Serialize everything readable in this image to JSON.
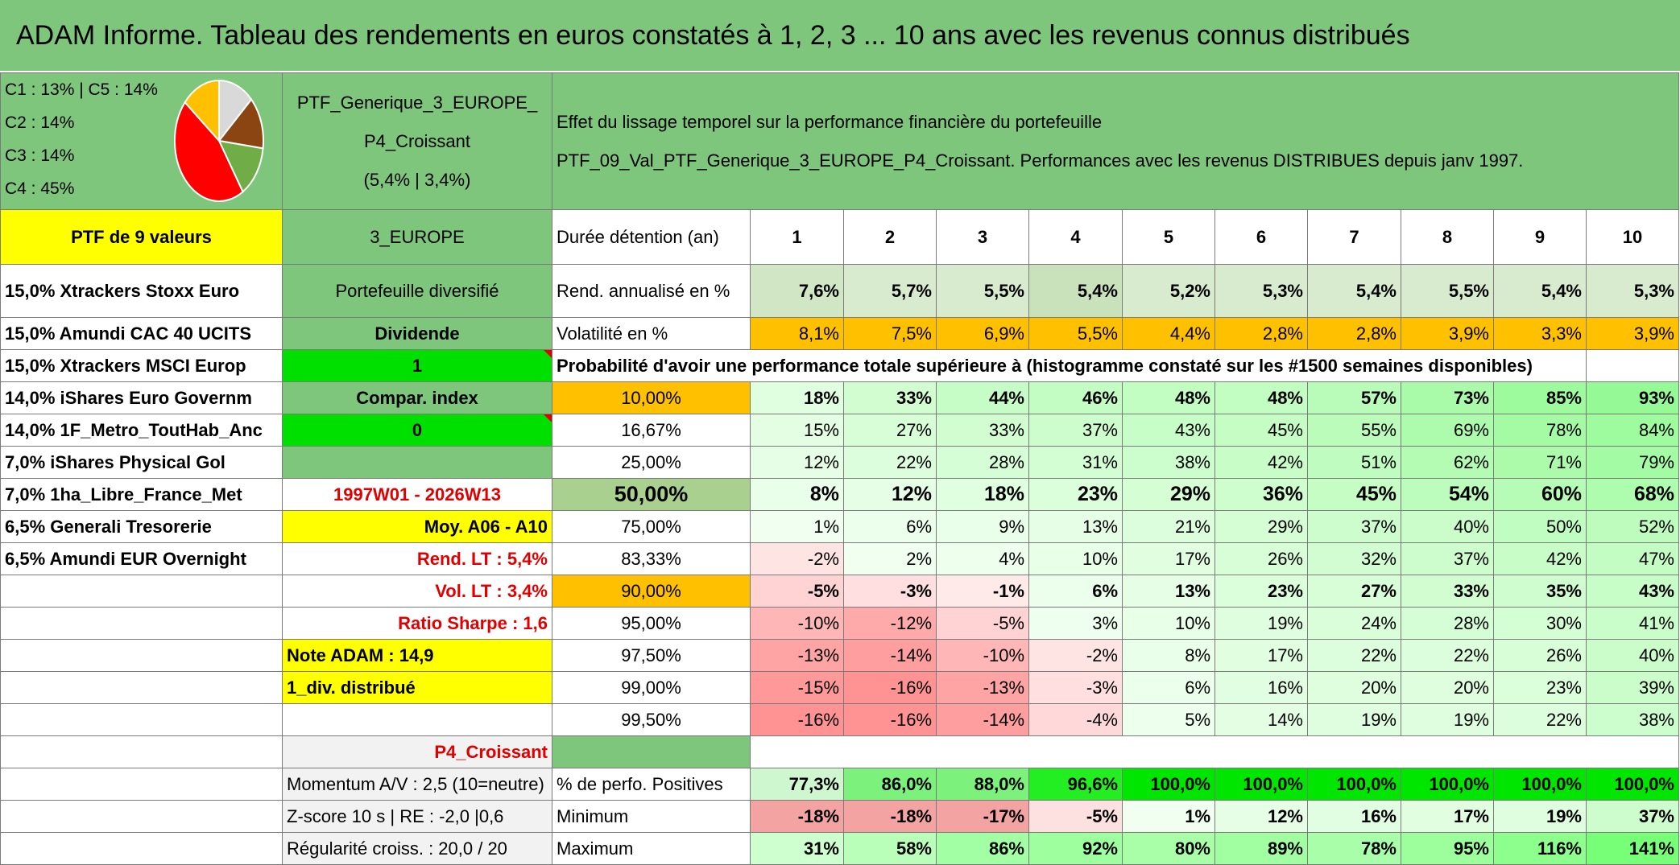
{
  "title": "ADAM Informe. Tableau des rendements en euros constatés à 1, 2, 3 ... 10 ans avec les revenus connus distribués",
  "composition": [
    "C1 : 13% | C5 : 14%",
    "C2 : 14%",
    "C3 : 14%",
    "C4 : 45%"
  ],
  "pie_colors": [
    "#d9d9d9",
    "#8b4513",
    "#70ad47",
    "#ff0000",
    "#ffc000"
  ],
  "pie_values": [
    13,
    14,
    14,
    45,
    14
  ],
  "ptf_name": [
    "PTF_Generique_3_EUROPE_",
    "P4_Croissant",
    "(5,4% | 3,4%)"
  ],
  "effet": [
    "Effet du lissage temporel sur la performance financière du portefeuille",
    "PTF_09_Val_PTF_Generique_3_EUROPE_P4_Croissant. Performances avec les revenus DISTRIBUES depuis janv 1997."
  ],
  "ptf_label": "PTF de 9 valeurs",
  "zone": "3_EUROPE",
  "duree_label": "Durée détention (an)",
  "years": [
    "1",
    "2",
    "3",
    "4",
    "5",
    "6",
    "7",
    "8",
    "9",
    "10"
  ],
  "holdings": [
    "15,0% Xtrackers Stoxx Euro",
    "15,0% Amundi CAC 40 UCITS",
    "15,0% Xtrackers MSCI Europ",
    "14,0% iShares Euro Governm",
    "14,0% 1F_Metro_ToutHab_Anc",
    "7,0% iShares Physical Gol",
    "7,0% 1ha_Libre_France_Met",
    "6,5% Generali Tresorerie",
    "6,5% Amundi EUR Overnight"
  ],
  "mid": {
    "diversifie": "Portefeuille diversifié",
    "dividende": "Dividende",
    "dividende_val": "1",
    "compar": "Compar. index",
    "compar_val": "0",
    "periode": "1997W01 - 2026W13",
    "moy": "Moy. A06 - A10",
    "rend_lt": "Rend. LT : 5,4%",
    "vol_lt": "Vol. LT : 3,4%",
    "sharpe": "Ratio Sharpe : 1,6",
    "note": "Note ADAM : 14,9",
    "div_distrib": "1_div. distribué",
    "profil": "P4_Croissant",
    "momentum": "Momentum A/V : 2,5 (10=neutre)",
    "zscore": "Z-score 10 s | RE : -2,0 |0,6",
    "regularite": "Régularité croiss. : 20,0 / 20"
  },
  "rend": {
    "label": "Rend. annualisé en %",
    "values": [
      "7,6%",
      "5,7%",
      "5,5%",
      "5,4%",
      "5,2%",
      "5,3%",
      "5,4%",
      "5,5%",
      "5,4%",
      "5,3%"
    ]
  },
  "vol": {
    "label": "Volatilité en %",
    "values": [
      "8,1%",
      "7,5%",
      "6,9%",
      "5,5%",
      "4,4%",
      "2,8%",
      "2,8%",
      "3,9%",
      "3,3%",
      "3,9%"
    ]
  },
  "proba_label": "Probabilité d'avoir une performance totale supérieure à (histogramme constaté sur les #1500 semaines disponibles)",
  "proba": [
    {
      "p": "10,00%",
      "values": [
        "18%",
        "33%",
        "44%",
        "46%",
        "48%",
        "48%",
        "57%",
        "73%",
        "85%",
        "93%"
      ]
    },
    {
      "p": "16,67%",
      "values": [
        "15%",
        "27%",
        "33%",
        "37%",
        "43%",
        "45%",
        "55%",
        "69%",
        "78%",
        "84%"
      ]
    },
    {
      "p": "25,00%",
      "values": [
        "12%",
        "22%",
        "28%",
        "31%",
        "38%",
        "42%",
        "51%",
        "62%",
        "71%",
        "79%"
      ]
    },
    {
      "p": "50,00%",
      "values": [
        "8%",
        "12%",
        "18%",
        "23%",
        "29%",
        "36%",
        "45%",
        "54%",
        "60%",
        "68%"
      ]
    },
    {
      "p": "75,00%",
      "values": [
        "1%",
        "6%",
        "9%",
        "13%",
        "21%",
        "29%",
        "37%",
        "40%",
        "50%",
        "52%"
      ]
    },
    {
      "p": "83,33%",
      "values": [
        "-2%",
        "2%",
        "4%",
        "10%",
        "17%",
        "26%",
        "32%",
        "37%",
        "42%",
        "47%"
      ]
    },
    {
      "p": "90,00%",
      "values": [
        "-5%",
        "-3%",
        "-1%",
        "6%",
        "13%",
        "23%",
        "27%",
        "33%",
        "35%",
        "43%"
      ]
    },
    {
      "p": "95,00%",
      "values": [
        "-10%",
        "-12%",
        "-5%",
        "3%",
        "10%",
        "19%",
        "24%",
        "28%",
        "30%",
        "41%"
      ]
    },
    {
      "p": "97,50%",
      "values": [
        "-13%",
        "-14%",
        "-10%",
        "-2%",
        "8%",
        "17%",
        "22%",
        "22%",
        "26%",
        "40%"
      ]
    },
    {
      "p": "99,00%",
      "values": [
        "-15%",
        "-16%",
        "-13%",
        "-3%",
        "6%",
        "16%",
        "20%",
        "20%",
        "23%",
        "39%"
      ]
    },
    {
      "p": "99,50%",
      "values": [
        "-16%",
        "-16%",
        "-14%",
        "-4%",
        "5%",
        "14%",
        "19%",
        "19%",
        "22%",
        "38%"
      ]
    }
  ],
  "positives": {
    "label": "% de perfo. Positives",
    "values": [
      "77,3%",
      "86,0%",
      "88,0%",
      "96,6%",
      "100,0%",
      "100,0%",
      "100,0%",
      "100,0%",
      "100,0%",
      "100,0%"
    ]
  },
  "minimum": {
    "label": "Minimum",
    "values": [
      "-18%",
      "-18%",
      "-17%",
      "-5%",
      "1%",
      "12%",
      "16%",
      "17%",
      "19%",
      "37%"
    ]
  },
  "maximum": {
    "label": "Maximum",
    "values": [
      "31%",
      "58%",
      "86%",
      "92%",
      "80%",
      "89%",
      "78%",
      "95%",
      "116%",
      "141%"
    ]
  }
}
